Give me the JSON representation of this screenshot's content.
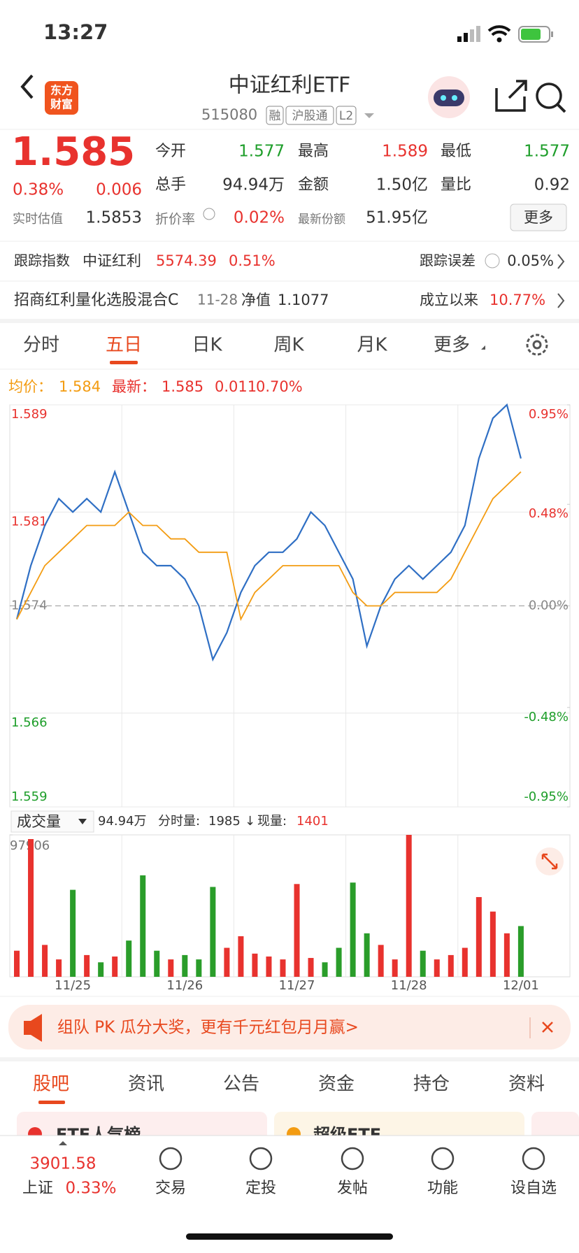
{
  "status_bar": {
    "time": "13:27"
  },
  "header": {
    "logo": [
      "东方",
      "财富"
    ],
    "title": "中证红利ETF",
    "code": "515080",
    "tags": [
      "融",
      "沪股通",
      "L2"
    ]
  },
  "quote": {
    "price": "1.585",
    "change_pct": "0.38%",
    "change": "0.006",
    "stats": [
      [
        "今开",
        "1.577"
      ],
      [
        "最高",
        "1.589"
      ],
      [
        "最低",
        "1.577"
      ],
      [
        "总手",
        "94.94万"
      ],
      [
        "金额",
        "1.50亿"
      ],
      [
        "量比",
        "0.92"
      ]
    ],
    "estimate": {
      "label": "实时估值",
      "value": "1.5853"
    },
    "premium": {
      "label": "折价率",
      "value": "0.02%"
    },
    "shares": {
      "label": "最新份额",
      "value": "51.95亿"
    },
    "more": "更多"
  },
  "tracking": {
    "label": "跟踪指数",
    "index": "中证红利",
    "index_value": "5574.39",
    "index_change": "0.51%",
    "error_label": "跟踪误差",
    "error": "0.05%"
  },
  "fund": {
    "name": "招商红利量化选股混合C",
    "date": "11-28",
    "nav_label": "净值",
    "nav": "1.1077",
    "since_label": "成立以来",
    "since": "10.77%"
  },
  "chart_tabs": [
    "分时",
    "五日",
    "日K",
    "周K",
    "月K",
    "更多"
  ],
  "chart_legend": {
    "avg_label": "均价：",
    "avg": "1.584",
    "latest_label": "最新：",
    "latest": "1.585",
    "change": "0.011",
    "change_pct": "0.70%"
  },
  "chart_data": [
    {
      "type": "line",
      "categories": [
        null,
        null,
        null,
        null,
        null,
        null,
        null,
        null,
        null,
        null,
        null,
        null,
        null,
        null,
        null,
        null,
        null,
        null,
        null,
        null,
        null,
        null,
        null,
        null,
        null,
        null,
        null,
        null,
        null,
        null,
        null,
        null,
        null,
        null,
        null,
        null,
        null,
        null,
        null,
        null
      ],
      "series": [
        {
          "color": "#2f6fc4",
          "values": [
            1.573,
            1.577,
            1.58,
            1.582,
            1.581,
            1.582,
            1.581,
            1.584,
            1.581,
            1.578,
            1.577,
            1.577,
            1.576,
            1.574,
            1.57,
            1.572,
            1.575,
            1.577,
            1.578,
            1.578,
            1.579,
            1.581,
            1.58,
            1.578,
            1.576,
            1.571,
            1.574,
            1.576,
            1.577,
            1.576,
            1.577,
            1.578,
            1.58,
            1.585,
            1.588,
            1.589,
            1.585,
            null,
            null,
            null
          ]
        },
        {
          "color": "#f39c12",
          "values": [
            1.573,
            1.575,
            1.577,
            1.578,
            1.579,
            1.58,
            1.58,
            1.58,
            1.581,
            1.58,
            1.58,
            1.579,
            1.579,
            1.578,
            1.578,
            1.578,
            1.573,
            1.575,
            1.576,
            1.577,
            1.577,
            1.577,
            1.577,
            1.577,
            1.575,
            1.574,
            1.574,
            1.575,
            1.575,
            1.575,
            1.575,
            1.576,
            1.578,
            1.58,
            1.582,
            1.583,
            1.584,
            null,
            null,
            null
          ]
        }
      ],
      "ylim": [
        1.559,
        1.589
      ],
      "yticks": [
        1.589,
        1.581,
        1.574,
        1.566,
        1.559
      ],
      "y2lim": [
        -0.95,
        0.95
      ],
      "y2ticks": [
        {
          "value": 0.95,
          "label": "0.95%"
        },
        {
          "value": 0.48,
          "label": "0.48%"
        },
        {
          "value": 0,
          "label": "0.00%"
        },
        {
          "value": -0.48,
          "label": "-0.48%"
        },
        {
          "value": -0.95,
          "label": "-0.95%"
        }
      ],
      "grid": true
    },
    {
      "type": "bar",
      "categories": [
        null,
        null,
        null,
        null,
        "11/25",
        null,
        null,
        null,
        null,
        null,
        null,
        null,
        "11/26",
        null,
        null,
        null,
        null,
        null,
        null,
        null,
        "11/27",
        null,
        null,
        null,
        null,
        null,
        null,
        null,
        "11/28",
        null,
        null,
        null,
        null,
        null,
        null,
        null,
        "12/01",
        null,
        null,
        null
      ],
      "values": [
        18000,
        95000,
        22000,
        12000,
        60000,
        15000,
        10000,
        14000,
        25000,
        70000,
        18000,
        12000,
        15000,
        12000,
        62000,
        20000,
        28000,
        16000,
        14000,
        12000,
        64000,
        13000,
        10000,
        20000,
        65000,
        30000,
        22000,
        12000,
        97906,
        18000,
        12000,
        15000,
        20000,
        55000,
        45000,
        30000,
        35000,
        null,
        null,
        null
      ],
      "up_color": "#e8322e",
      "down_color": "#2a9d2a",
      "ylim": [
        0,
        97906
      ],
      "yticks": [
        97906
      ]
    }
  ],
  "volume_bar": {
    "selector": "成交量",
    "total": "94.94万",
    "minute_label": "分时量:",
    "minute": "1985",
    "arrow": "↓",
    "now_label": "现量:",
    "now": "1401"
  },
  "banner": {
    "text": "组队 PK 瓜分大奖，更有千元红包月月赢>"
  },
  "bottom_tabs": [
    "股吧",
    "资讯",
    "公告",
    "资金",
    "持仓",
    "资料"
  ],
  "cards": [
    "ETF人气榜",
    "超级ETF"
  ],
  "nav": {
    "index_value": "3901.58",
    "index_name": "上证",
    "index_change": "0.33%",
    "items": [
      "交易",
      "定投",
      "发帖",
      "功能",
      "设自选"
    ]
  }
}
